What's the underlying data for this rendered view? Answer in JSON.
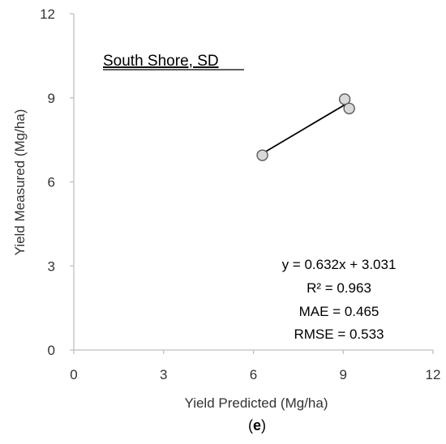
{
  "chart_data": {
    "type": "scatter",
    "title": "South Shore, SD",
    "xlabel": "Yield Predicted (Mg/ha)",
    "ylabel": "Yield Measured (Mg/ha)",
    "xlim": [
      0,
      12
    ],
    "ylim": [
      0,
      12
    ],
    "x_ticks": [
      0,
      3,
      6,
      9,
      12
    ],
    "y_ticks": [
      0,
      3,
      6,
      9,
      12
    ],
    "grid": false,
    "points": [
      {
        "x": 6.3,
        "y": 6.95
      },
      {
        "x": 9.05,
        "y": 8.95
      },
      {
        "x": 9.2,
        "y": 8.62
      }
    ],
    "trendline": {
      "slope": 0.632,
      "intercept": 3.031,
      "x_range": [
        6.3,
        9.2
      ]
    },
    "annotations": [
      "y = 0.632x + 3.031",
      "R² = 0.963",
      "MAE = 0.465",
      "RMSE = 0.533"
    ],
    "colors": {
      "marker_fill": "#d9d9d9",
      "marker_edge": "#595959",
      "trendline": "#000000",
      "axis": "#bfbfbf"
    }
  },
  "caption": {
    "open": "(",
    "letter": "e",
    "close": ")"
  }
}
